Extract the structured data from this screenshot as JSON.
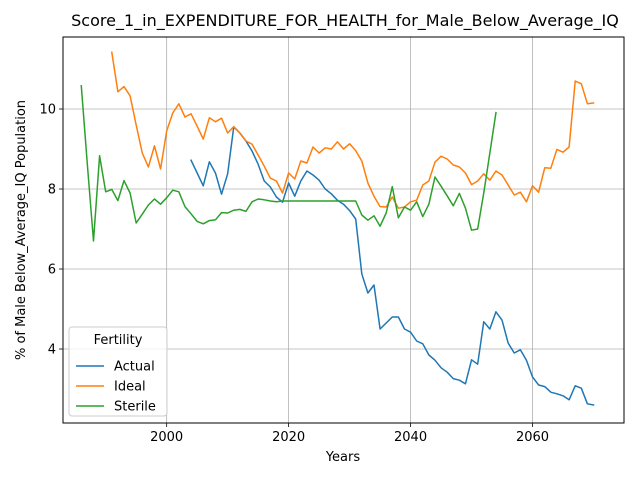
{
  "chart_data": {
    "type": "line",
    "title": "Score_1_in_EXPENDITURE_FOR_HEALTH_for_Male_Below_Average_IQ",
    "xlabel": "Years",
    "ylabel": "% of Male Below_Average_IQ Population",
    "xlim": [
      1983,
      2075
    ],
    "ylim": [
      2.15,
      11.8
    ],
    "x_ticks": [
      2000,
      2020,
      2040,
      2060
    ],
    "y_ticks": [
      4,
      6,
      8,
      10
    ],
    "grid": true,
    "legend": {
      "title": "Fertility",
      "placement": "lower-left"
    },
    "series": [
      {
        "name": "Actual",
        "color": "#1f77b4",
        "x": [
          2004,
          2005,
          2006,
          2007,
          2008,
          2009,
          2010,
          2011,
          2012,
          2013,
          2014,
          2015,
          2016,
          2017,
          2018,
          2019,
          2020,
          2021,
          2022,
          2023,
          2024,
          2025,
          2026,
          2027,
          2028,
          2029,
          2030,
          2031,
          2032,
          2033,
          2034,
          2035,
          2036,
          2037,
          2038,
          2039,
          2040,
          2041,
          2042,
          2043,
          2044,
          2045,
          2046,
          2047,
          2048,
          2049,
          2050,
          2051,
          2052,
          2053,
          2054,
          2055,
          2056,
          2057,
          2058,
          2059,
          2060,
          2061,
          2062,
          2063,
          2064,
          2065,
          2066,
          2067,
          2068,
          2069,
          2070
        ],
        "y": [
          8.72,
          8.4,
          8.08,
          8.68,
          8.4,
          7.87,
          8.38,
          9.55,
          9.4,
          9.2,
          8.95,
          8.62,
          8.2,
          8.05,
          7.8,
          7.67,
          8.15,
          7.82,
          8.2,
          8.45,
          8.35,
          8.22,
          8.0,
          7.88,
          7.72,
          7.62,
          7.46,
          7.25,
          5.88,
          5.4,
          5.6,
          4.5,
          4.65,
          4.8,
          4.8,
          4.5,
          4.42,
          4.2,
          4.13,
          3.85,
          3.72,
          3.53,
          3.42,
          3.26,
          3.22,
          3.13,
          3.73,
          3.62,
          4.68,
          4.5,
          4.93,
          4.72,
          4.15,
          3.9,
          3.98,
          3.72,
          3.3,
          3.1,
          3.06,
          2.92,
          2.88,
          2.83,
          2.73,
          3.08,
          3.02,
          2.63,
          2.6
        ]
      },
      {
        "name": "Ideal",
        "color": "#ff7f0e",
        "x": [
          1991,
          1992,
          1993,
          1994,
          1995,
          1996,
          1997,
          1998,
          1999,
          2000,
          2001,
          2002,
          2003,
          2004,
          2005,
          2006,
          2007,
          2008,
          2009,
          2010,
          2011,
          2012,
          2013,
          2014,
          2015,
          2016,
          2017,
          2018,
          2019,
          2020,
          2021,
          2022,
          2023,
          2024,
          2025,
          2026,
          2027,
          2028,
          2029,
          2030,
          2031,
          2032,
          2033,
          2034,
          2035,
          2036,
          2037,
          2038,
          2039,
          2040,
          2041,
          2042,
          2043,
          2044,
          2045,
          2046,
          2047,
          2048,
          2049,
          2050,
          2051,
          2052,
          2053,
          2054,
          2055,
          2056,
          2057,
          2058,
          2059,
          2060,
          2061,
          2062,
          2063,
          2064,
          2065,
          2066,
          2067,
          2068,
          2069,
          2070
        ],
        "y": [
          11.42,
          10.43,
          10.56,
          10.33,
          9.6,
          8.9,
          8.55,
          9.08,
          8.5,
          9.45,
          9.9,
          10.13,
          9.8,
          9.88,
          9.57,
          9.25,
          9.78,
          9.68,
          9.77,
          9.4,
          9.56,
          9.4,
          9.2,
          9.12,
          8.85,
          8.57,
          8.27,
          8.2,
          7.9,
          8.4,
          8.25,
          8.7,
          8.65,
          9.05,
          8.9,
          9.03,
          9.0,
          9.18,
          9.0,
          9.13,
          8.96,
          8.7,
          8.15,
          7.82,
          7.56,
          7.55,
          7.8,
          7.52,
          7.55,
          7.68,
          7.72,
          8.1,
          8.2,
          8.67,
          8.82,
          8.75,
          8.6,
          8.55,
          8.4,
          8.11,
          8.2,
          8.38,
          8.22,
          8.45,
          8.35,
          8.1,
          7.85,
          7.92,
          7.68,
          8.08,
          7.92,
          8.53,
          8.52,
          8.99,
          8.92,
          9.05,
          10.7,
          10.63,
          10.13,
          10.15
        ]
      },
      {
        "name": "Sterile",
        "color": "#2ca02c",
        "x": [
          1986,
          1987,
          1988,
          1989,
          1990,
          1991,
          1992,
          1993,
          1994,
          1995,
          1996,
          1997,
          1998,
          1999,
          2000,
          2001,
          2002,
          2003,
          2004,
          2005,
          2006,
          2007,
          2008,
          2009,
          2010,
          2011,
          2012,
          2013,
          2014,
          2015,
          2016,
          2017,
          2018,
          2019,
          2020,
          2021,
          2022,
          2023,
          2024,
          2025,
          2026,
          2027,
          2028,
          2029,
          2030,
          2031,
          2032,
          2033,
          2034,
          2035,
          2036,
          2037,
          2038,
          2039,
          2040,
          2041,
          2042,
          2043,
          2044,
          2045,
          2046,
          2047,
          2048,
          2049,
          2050,
          2051,
          2052,
          2053,
          2054
        ],
        "y": [
          10.58,
          8.6,
          6.7,
          8.83,
          7.93,
          7.99,
          7.71,
          8.21,
          7.9,
          7.15,
          7.37,
          7.6,
          7.75,
          7.62,
          7.78,
          7.97,
          7.93,
          7.56,
          7.38,
          7.19,
          7.13,
          7.21,
          7.23,
          7.41,
          7.4,
          7.47,
          7.49,
          7.44,
          7.68,
          7.75,
          7.73,
          7.7,
          7.68,
          7.7,
          7.7,
          7.7,
          7.7,
          7.7,
          7.7,
          7.7,
          7.7,
          7.7,
          7.7,
          7.7,
          7.7,
          7.7,
          7.35,
          7.22,
          7.33,
          7.07,
          7.4,
          8.06,
          7.28,
          7.55,
          7.47,
          7.68,
          7.31,
          7.62,
          8.3,
          8.07,
          7.83,
          7.58,
          7.89,
          7.52,
          6.97,
          7.0,
          7.9,
          8.9,
          9.91
        ]
      }
    ]
  }
}
